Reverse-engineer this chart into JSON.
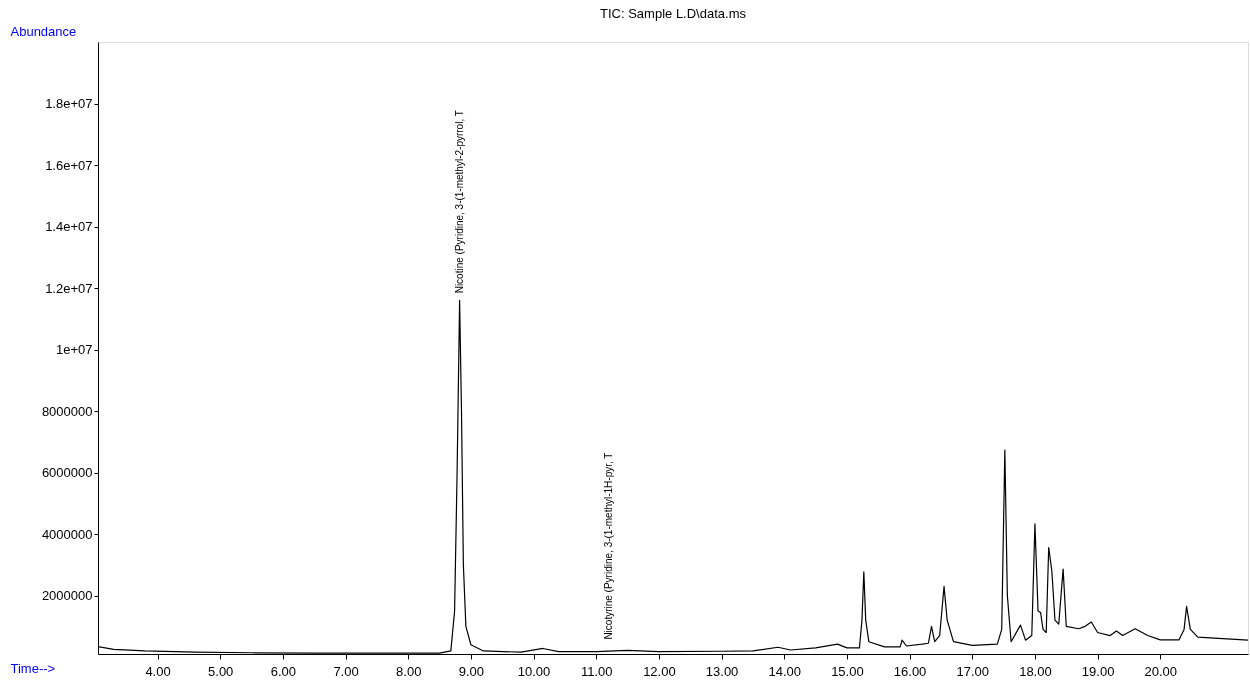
{
  "chart_data": {
    "type": "line",
    "title": "TIC: Sample L.D\\data.ms",
    "xlabel": "Time-->",
    "ylabel": "Abundance",
    "x": [
      3.05,
      3.3,
      3.8,
      4.6,
      5.5,
      6.5,
      7.5,
      8.5,
      8.68,
      8.74,
      8.78,
      8.82,
      8.85,
      8.88,
      8.92,
      9.0,
      9.2,
      9.8,
      10.15,
      10.4,
      11.0,
      11.5,
      12.0,
      13.0,
      13.5,
      13.9,
      14.1,
      14.5,
      14.85,
      15.0,
      15.2,
      15.24,
      15.27,
      15.3,
      15.35,
      15.6,
      15.85,
      15.88,
      15.95,
      16.2,
      16.3,
      16.35,
      16.4,
      16.48,
      16.55,
      16.6,
      16.7,
      17.0,
      17.4,
      17.47,
      17.52,
      17.56,
      17.62,
      17.77,
      17.85,
      17.95,
      18.0,
      18.05,
      18.09,
      18.13,
      18.18,
      18.22,
      18.27,
      18.32,
      18.38,
      18.45,
      18.5,
      18.7,
      18.8,
      18.9,
      19.0,
      19.2,
      19.3,
      19.4,
      19.6,
      19.8,
      20.0,
      20.3,
      20.38,
      20.42,
      20.48,
      20.6,
      21.0,
      21.4
    ],
    "series": [
      {
        "color": "#000000",
        "values": [
          340000,
          250000,
          200000,
          160000,
          140000,
          130000,
          130000,
          130000,
          200000,
          1500000,
          6000000,
          11600000,
          8000000,
          3000000,
          1000000,
          400000,
          200000,
          160000,
          280000,
          180000,
          180000,
          220000,
          180000,
          190000,
          200000,
          320000,
          230000,
          300000,
          420000,
          300000,
          300000,
          1200000,
          2770000,
          1200000,
          500000,
          330000,
          330000,
          550000,
          360000,
          420000,
          450000,
          1000000,
          500000,
          700000,
          2300000,
          1200000,
          500000,
          380000,
          420000,
          900000,
          6730000,
          2000000,
          500000,
          1040000,
          550000,
          700000,
          4330000,
          1500000,
          1450000,
          900000,
          800000,
          3560000,
          2800000,
          1200000,
          1070000,
          2860000,
          1000000,
          920000,
          1000000,
          1140000,
          800000,
          700000,
          850000,
          700000,
          920000,
          700000,
          560000,
          560000,
          900000,
          1650000,
          900000,
          650000,
          600000,
          550000
        ]
      }
    ],
    "xlim": [
      3.05,
      21.4
    ],
    "ylim": [
      100000,
      20000000
    ],
    "xticks": [
      {
        "value": 4,
        "label": "4.00"
      },
      {
        "value": 5,
        "label": "5.00"
      },
      {
        "value": 6,
        "label": "6.00"
      },
      {
        "value": 7,
        "label": "7.00"
      },
      {
        "value": 8,
        "label": "8.00"
      },
      {
        "value": 9,
        "label": "9.00"
      },
      {
        "value": 10,
        "label": "10.00"
      },
      {
        "value": 11,
        "label": "11.00"
      },
      {
        "value": 12,
        "label": "12.00"
      },
      {
        "value": 13,
        "label": "13.00"
      },
      {
        "value": 14,
        "label": "14.00"
      },
      {
        "value": 15,
        "label": "15.00"
      },
      {
        "value": 16,
        "label": "16.00"
      },
      {
        "value": 17,
        "label": "17.00"
      },
      {
        "value": 18,
        "label": "18.00"
      },
      {
        "value": 19,
        "label": "19.00"
      },
      {
        "value": 20,
        "label": "20.00"
      }
    ],
    "yticks": [
      2000000,
      4000000,
      6000000,
      8000000,
      {
        "value": 10000000,
        "label": "1e+07"
      },
      {
        "value": 12000000,
        "label": "1.2e+07"
      },
      {
        "value": 14000000,
        "label": "1.4e+07"
      },
      {
        "value": 16000000,
        "label": "1.6e+07"
      },
      {
        "value": 18000000,
        "label": "1.8e+07"
      }
    ],
    "annotations": [
      {
        "text": "Nicotine (Pyridine, 3-(1-methyl-2-pyrrol, T",
        "x": 8.82,
        "y": 11600000
      },
      {
        "text": "Nicotyrine (Pyridine, 3-(1-methyl-1H-pyr, T",
        "x": 11.2,
        "y": 340000
      }
    ],
    "grid": false,
    "marker": "none",
    "line_style": "solid"
  }
}
